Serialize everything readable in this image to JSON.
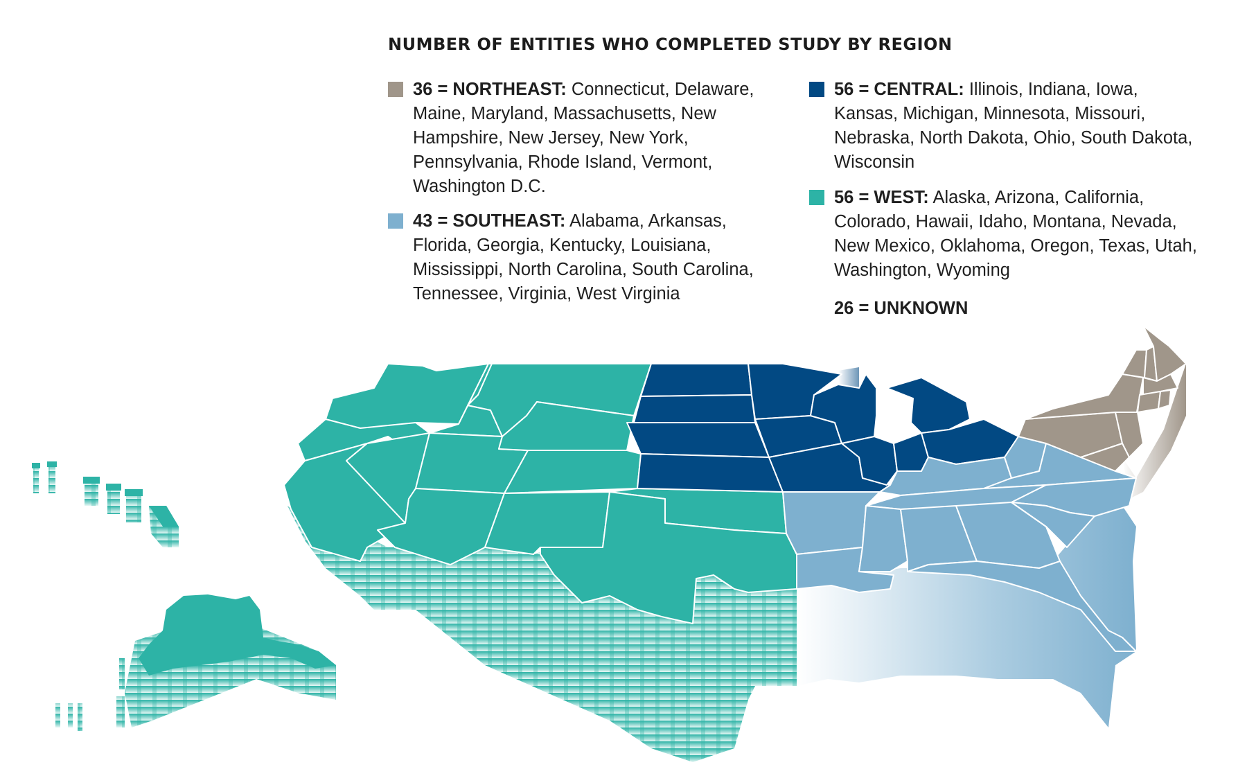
{
  "title": "NUMBER OF ENTITIES WHO COMPLETED STUDY BY REGION",
  "colors": {
    "northeast": "#a0968a",
    "southeast": "#7eb0cf",
    "central": "#024983",
    "west": "#2db3a6"
  },
  "legend": [
    {
      "region": "NORTHEAST",
      "count": 36,
      "label": "36 = NORTHEAST:",
      "states": "Connecticut, Delaware, Maine, Maryland, Massachusetts, New Hampshire, New Jersey, New York, Pennsylvania, Rhode Island, Vermont, Washington D.C.",
      "color": "#a0968a"
    },
    {
      "region": "SOUTHEAST",
      "count": 43,
      "label": "43 = SOUTHEAST:",
      "states": "Alabama, Arkansas, Florida, Georgia, Kentucky, Louisiana, Mississippi, North Carolina, South Carolina, Tennessee, Virginia, West Virginia",
      "color": "#7eb0cf"
    },
    {
      "region": "CENTRAL",
      "count": 56,
      "label": "56 = CENTRAL:",
      "states": "Illinois, Indiana, Iowa, Kansas, Michigan, Minnesota, Missouri, Nebraska, North Dakota, Ohio, South Dakota, Wisconsin",
      "color": "#024983"
    },
    {
      "region": "WEST",
      "count": 56,
      "label": "56 = WEST:",
      "states": "Alaska, Arizona, California, Colorado, Hawaii, Idaho, Montana, Nevada, New Mexico, Oklahoma, Oregon, Texas, Utah, Washington, Wyoming",
      "color": "#2db3a6"
    },
    {
      "region": "UNKNOWN",
      "count": 26,
      "label": "26 = UNKNOWN",
      "states": ""
    }
  ]
}
